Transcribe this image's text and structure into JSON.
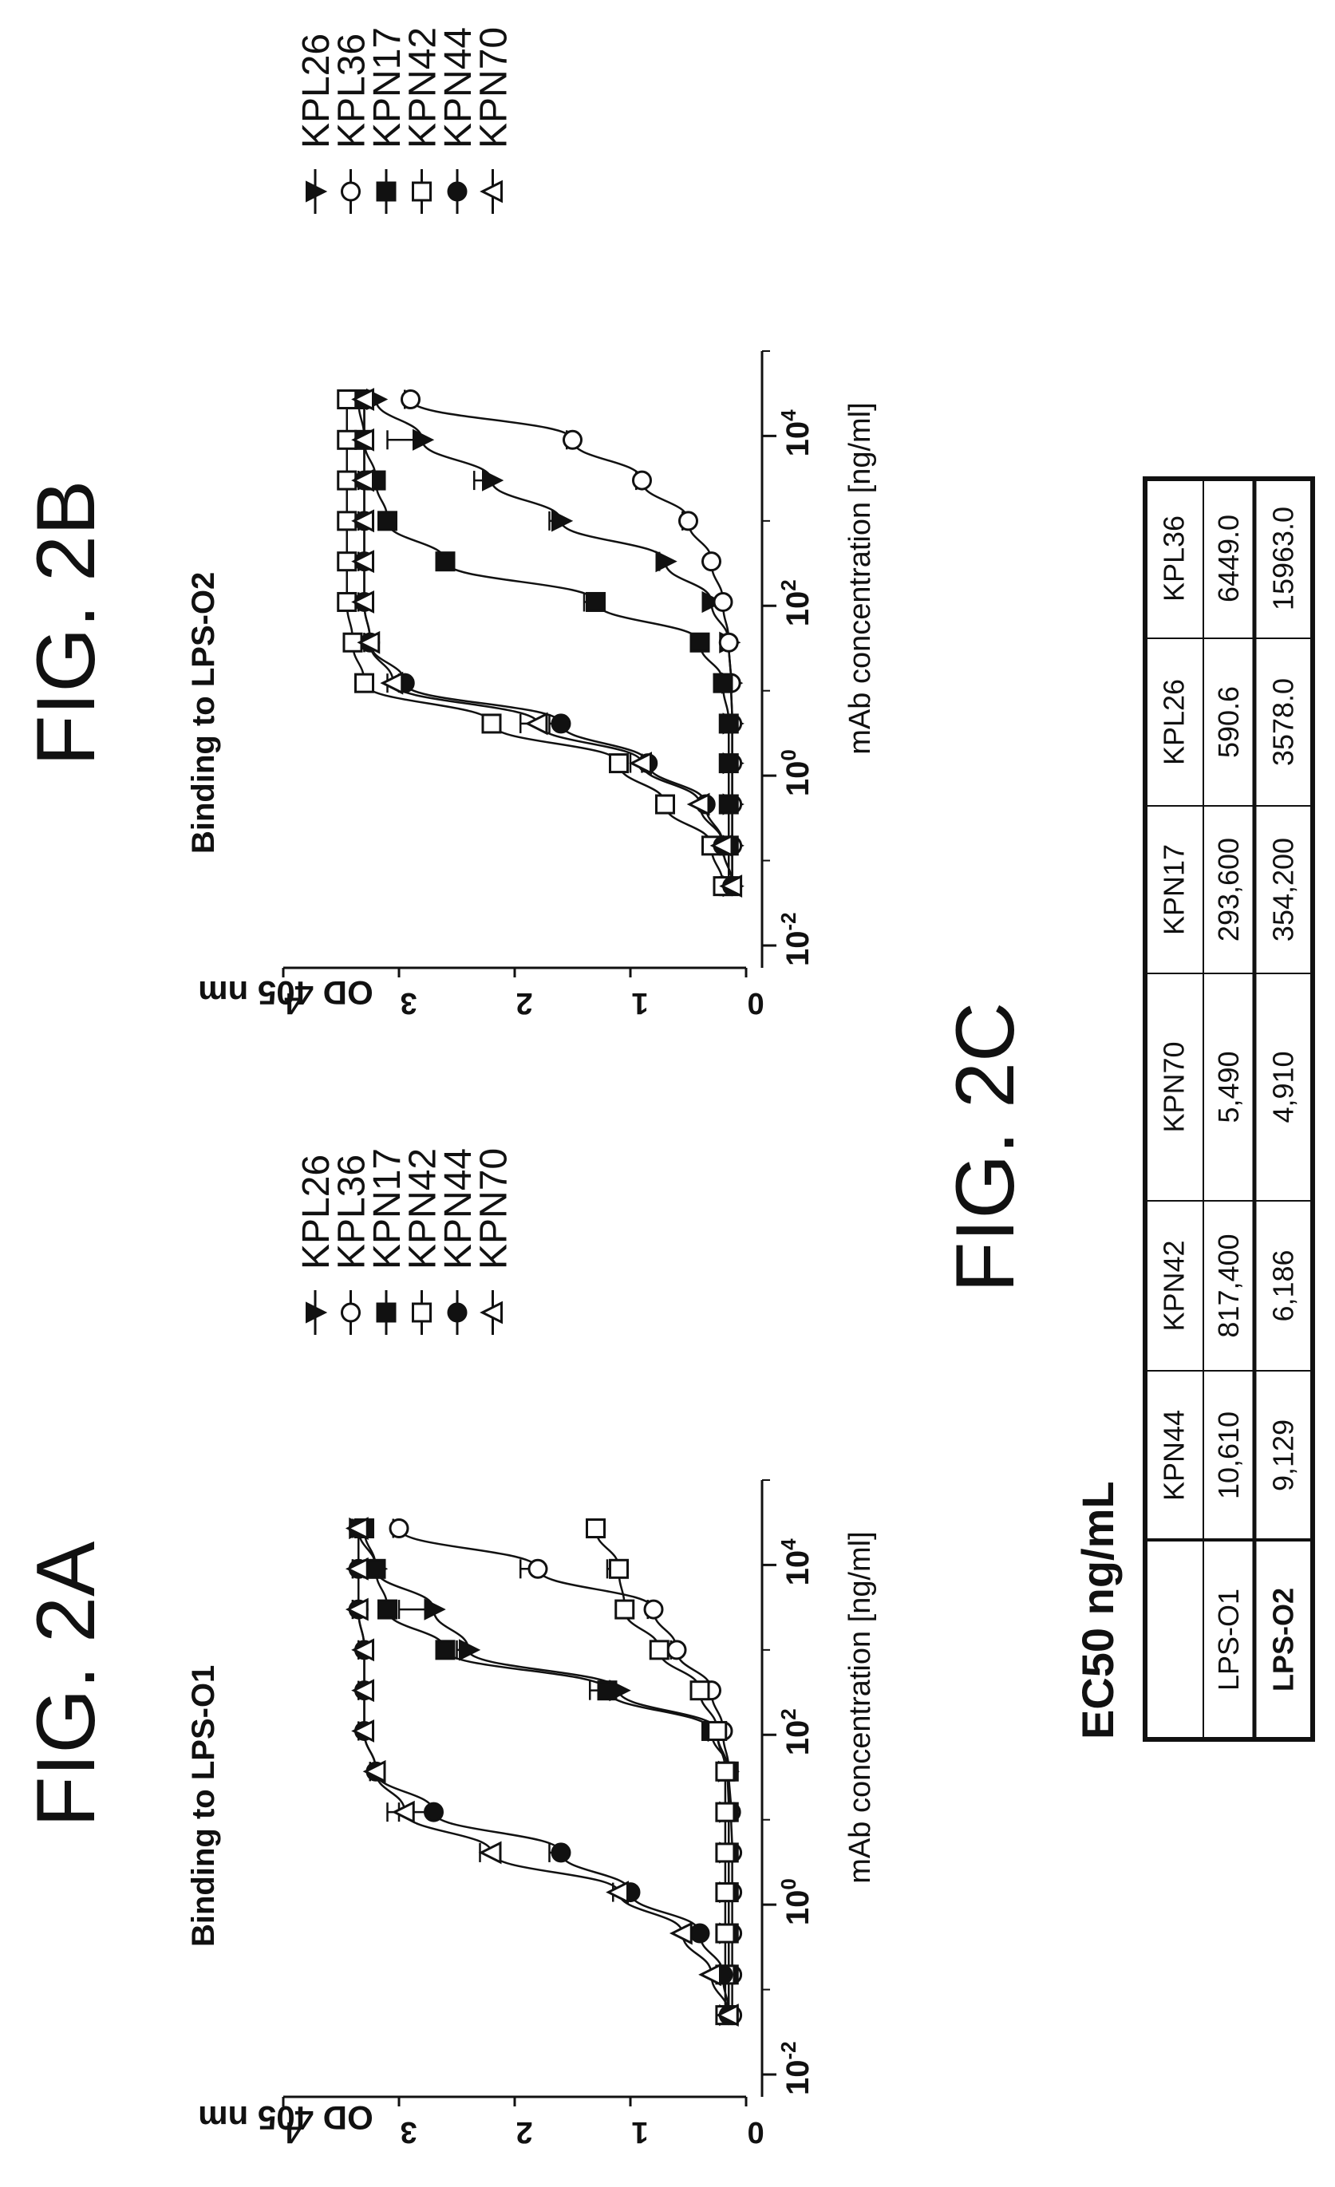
{
  "figures": {
    "a": "FIG. 2A",
    "b": "FIG. 2B",
    "c": "FIG. 2C"
  },
  "chart_data": [
    {
      "type": "scatter",
      "title": "Binding to LPS-O1",
      "xlabel": "mAb concentration [ng/ml]",
      "ylabel": "OD 405 nm",
      "xscale": "log",
      "xlim": [
        0.01,
        100000
      ],
      "ylim": [
        0,
        4
      ],
      "xticks": [
        0.01,
        1,
        100,
        10000
      ],
      "yticks": [
        0,
        1,
        2,
        3,
        4
      ],
      "legend_position": "right",
      "series": [
        {
          "name": "KPL26",
          "marker": "triangle-down-filled",
          "x": [
            0.05,
            0.15,
            0.46,
            1.4,
            4.1,
            12.3,
            37,
            111,
            333,
            1000,
            3000,
            9000,
            27000
          ],
          "y": [
            0.15,
            0.15,
            0.15,
            0.15,
            0.15,
            0.15,
            0.16,
            0.25,
            1.1,
            2.4,
            2.7,
            3.2,
            3.35
          ],
          "err": [
            0,
            0,
            0,
            0,
            0,
            0,
            0,
            0,
            0.1,
            0.1,
            0.3,
            0.1,
            0.05
          ]
        },
        {
          "name": "KPL36",
          "marker": "circle-open",
          "x": [
            0.05,
            0.15,
            0.46,
            1.4,
            4.1,
            12.3,
            37,
            111,
            333,
            1000,
            3000,
            9000,
            27000
          ],
          "y": [
            0.12,
            0.12,
            0.12,
            0.12,
            0.12,
            0.13,
            0.15,
            0.2,
            0.3,
            0.6,
            0.8,
            1.8,
            3.0
          ],
          "err": [
            0,
            0,
            0,
            0,
            0,
            0,
            0,
            0,
            0,
            0.05,
            0.05,
            0.15,
            0.05
          ]
        },
        {
          "name": "KPN17",
          "marker": "square-filled",
          "x": [
            0.05,
            0.15,
            0.46,
            1.4,
            4.1,
            12.3,
            37,
            111,
            333,
            1000,
            3000,
            9000,
            27000
          ],
          "y": [
            0.15,
            0.15,
            0.15,
            0.15,
            0.15,
            0.15,
            0.15,
            0.3,
            1.2,
            2.6,
            3.1,
            3.2,
            3.3
          ],
          "err": [
            0,
            0,
            0,
            0,
            0,
            0,
            0,
            0,
            0.15,
            0.05,
            0.05,
            0.05,
            0.05
          ]
        },
        {
          "name": "KPN42",
          "marker": "square-open",
          "x": [
            0.05,
            0.15,
            0.46,
            1.4,
            4.1,
            12.3,
            37,
            111,
            333,
            1000,
            3000,
            9000,
            27000
          ],
          "y": [
            0.18,
            0.18,
            0.18,
            0.18,
            0.18,
            0.18,
            0.18,
            0.25,
            0.4,
            0.75,
            1.05,
            1.1,
            1.3
          ],
          "err": [
            0,
            0,
            0,
            0,
            0,
            0,
            0,
            0,
            0.05,
            0.05,
            0.05,
            0.1,
            0.05
          ]
        },
        {
          "name": "KPN44",
          "marker": "circle-filled",
          "x": [
            0.05,
            0.15,
            0.46,
            1.4,
            4.1,
            12.3,
            37,
            111,
            333,
            1000,
            3000,
            9000,
            27000
          ],
          "y": [
            0.15,
            0.2,
            0.4,
            1.0,
            1.6,
            2.7,
            3.2,
            3.3,
            3.3,
            3.3,
            3.35,
            3.35,
            3.35
          ],
          "err": [
            0,
            0,
            0,
            0.05,
            0.1,
            0.3,
            0.05,
            0.05,
            0.05,
            0.05,
            0.05,
            0.05,
            0.05
          ]
        },
        {
          "name": "KPN70",
          "marker": "triangle-up-open",
          "x": [
            0.05,
            0.15,
            0.46,
            1.4,
            4.1,
            12.3,
            37,
            111,
            333,
            1000,
            3000,
            9000,
            27000
          ],
          "y": [
            0.15,
            0.3,
            0.55,
            1.1,
            2.2,
            2.95,
            3.2,
            3.3,
            3.3,
            3.3,
            3.35,
            3.35,
            3.35
          ],
          "err": [
            0,
            0,
            0,
            0.05,
            0.1,
            0.15,
            0.05,
            0.05,
            0.05,
            0.05,
            0.05,
            0.05,
            0.05
          ]
        }
      ]
    },
    {
      "type": "scatter",
      "title": "Binding to  LPS-O2",
      "xlabel": "mAb concentration [ng/ml]",
      "ylabel": "OD 405 nm",
      "xscale": "log",
      "xlim": [
        0.01,
        100000
      ],
      "ylim": [
        0,
        4
      ],
      "xticks": [
        0.01,
        1,
        100,
        10000
      ],
      "yticks": [
        0,
        1,
        2,
        3,
        4
      ],
      "legend_position": "right",
      "series": [
        {
          "name": "KPL26",
          "marker": "triangle-down-filled",
          "x": [
            0.05,
            0.15,
            0.46,
            1.4,
            4.1,
            12.3,
            37,
            111,
            333,
            1000,
            3000,
            9000,
            27000
          ],
          "y": [
            0.12,
            0.12,
            0.12,
            0.12,
            0.12,
            0.13,
            0.15,
            0.3,
            0.7,
            1.6,
            2.2,
            2.8,
            3.2
          ],
          "err": [
            0,
            0,
            0,
            0,
            0,
            0,
            0,
            0,
            0.05,
            0.1,
            0.15,
            0.3,
            0.05
          ]
        },
        {
          "name": "KPL36",
          "marker": "circle-open",
          "x": [
            0.05,
            0.15,
            0.46,
            1.4,
            4.1,
            12.3,
            37,
            111,
            333,
            1000,
            3000,
            9000,
            27000
          ],
          "y": [
            0.12,
            0.12,
            0.12,
            0.12,
            0.12,
            0.13,
            0.15,
            0.2,
            0.3,
            0.5,
            0.9,
            1.5,
            2.9
          ],
          "err": [
            0,
            0,
            0,
            0,
            0,
            0,
            0,
            0,
            0,
            0.05,
            0.05,
            0.05,
            0.05
          ]
        },
        {
          "name": "KPN17",
          "marker": "square-filled",
          "x": [
            0.05,
            0.15,
            0.46,
            1.4,
            4.1,
            12.3,
            37,
            111,
            333,
            1000,
            3000,
            9000,
            27000
          ],
          "y": [
            0.15,
            0.15,
            0.15,
            0.15,
            0.15,
            0.2,
            0.4,
            1.3,
            2.6,
            3.1,
            3.2,
            3.3,
            3.35
          ],
          "err": [
            0,
            0,
            0,
            0,
            0,
            0,
            0,
            0.1,
            0.05,
            0.05,
            0.05,
            0.05,
            0.05
          ]
        },
        {
          "name": "KPN42",
          "marker": "square-open",
          "x": [
            0.05,
            0.15,
            0.46,
            1.4,
            4.1,
            12.3,
            37,
            111,
            333,
            1000,
            3000,
            9000,
            27000
          ],
          "y": [
            0.2,
            0.3,
            0.7,
            1.1,
            2.2,
            3.3,
            3.4,
            3.45,
            3.45,
            3.45,
            3.45,
            3.45,
            3.45
          ],
          "err": [
            0,
            0,
            0,
            0.05,
            0.05,
            0.05,
            0.05,
            0.05,
            0.05,
            0.05,
            0.05,
            0.05,
            0.05
          ]
        },
        {
          "name": "KPN44",
          "marker": "circle-filled",
          "x": [
            0.05,
            0.15,
            0.46,
            1.4,
            4.1,
            12.3,
            37,
            111,
            333,
            1000,
            3000,
            9000,
            27000
          ],
          "y": [
            0.12,
            0.2,
            0.35,
            0.85,
            1.6,
            2.95,
            3.25,
            3.3,
            3.3,
            3.3,
            3.3,
            3.3,
            3.3
          ],
          "err": [
            0,
            0,
            0,
            0.05,
            0.1,
            0.05,
            0.05,
            0.05,
            0.05,
            0.05,
            0.05,
            0.05,
            0.05
          ]
        },
        {
          "name": "KPN70",
          "marker": "triangle-up-open",
          "x": [
            0.05,
            0.15,
            0.46,
            1.4,
            4.1,
            12.3,
            37,
            111,
            333,
            1000,
            3000,
            9000,
            27000
          ],
          "y": [
            0.12,
            0.2,
            0.4,
            0.9,
            1.8,
            3.05,
            3.25,
            3.3,
            3.3,
            3.3,
            3.3,
            3.3,
            3.3
          ],
          "err": [
            0,
            0,
            0,
            0.1,
            0.15,
            0.05,
            0.05,
            0.05,
            0.05,
            0.05,
            0.05,
            0.05,
            0.05
          ]
        }
      ]
    },
    {
      "type": "table",
      "title": "EC50 ng/mL",
      "columns": [
        "",
        "KPN44",
        "KPN42",
        "KPN70",
        "KPN17",
        "KPL26",
        "KPL36"
      ],
      "rows": [
        [
          "LPS-O1",
          "10,610",
          "817,400",
          "5,490",
          "293,600",
          "590.6",
          "6449.0"
        ],
        [
          "LPS-O2",
          "9,129",
          "6,186",
          "4,910",
          "354,200",
          "3578.0",
          "15963.0"
        ]
      ]
    }
  ]
}
